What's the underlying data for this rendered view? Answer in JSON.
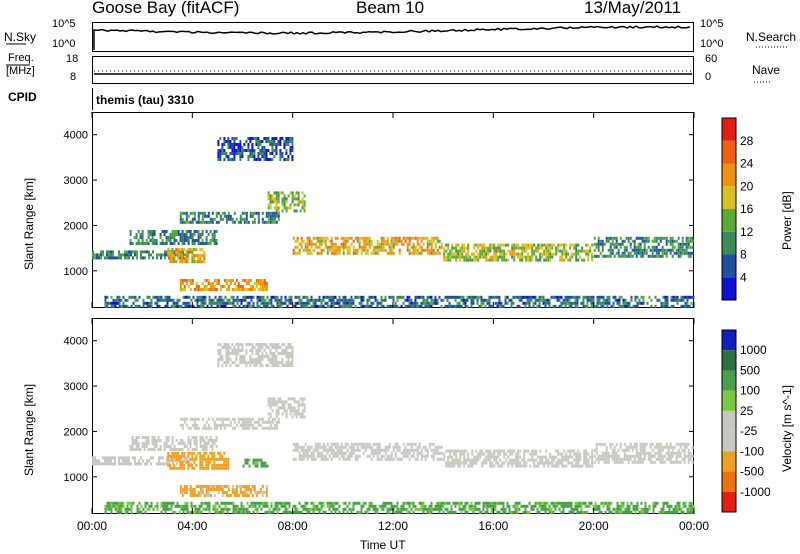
{
  "header": {
    "station": "Goose Bay (fitACF)",
    "beam": "Beam 10",
    "date": "13/May/2011"
  },
  "nsky_panel": {
    "left_label": "N.Sky",
    "left_ticks": [
      "10^5",
      "10^0"
    ],
    "right_label": "N.Search",
    "right_ticks": [
      "10^5",
      "10^0"
    ]
  },
  "freq_panel": {
    "left_label_line1": "Freq.",
    "left_label_line2": "[MHz]",
    "left_ticks": [
      "18",
      "8"
    ],
    "right_label": "Nave",
    "right_ticks": [
      "60",
      "0"
    ]
  },
  "cpid_panel": {
    "label": "CPID",
    "value": "themis (tau) 3310"
  },
  "x_axis": {
    "label": "Time UT",
    "ticks": [
      "00:00",
      "04:00",
      "08:00",
      "12:00",
      "16:00",
      "20:00",
      "00:00"
    ]
  },
  "colors": {
    "power_scale": [
      "#1010d0",
      "#2050a0",
      "#3a8a5a",
      "#5aaa3a",
      "#d8c020",
      "#f09010",
      "#f06010",
      "#e02010"
    ],
    "velocity_scale": [
      "#1020c0",
      "#2c7040",
      "#4aa04a",
      "#7ac840",
      "#c8c8c0",
      "#c8c8c0",
      "#f0a020",
      "#f07010",
      "#e02010"
    ],
    "ground_scatter": "#c8c8c0"
  },
  "chart_data": [
    {
      "type": "heatmap",
      "title": "",
      "xlabel": "Time UT",
      "ylabel": "Slant Range [km]",
      "xlim": [
        0,
        24
      ],
      "ylim": [
        180,
        4500
      ],
      "yticks": [
        1000,
        2000,
        3000,
        4000
      ],
      "colorbar": {
        "label": "Power [dB]",
        "ticks": [
          4,
          8,
          12,
          16,
          20,
          24,
          28
        ],
        "range": [
          0,
          32
        ]
      },
      "regions": [
        {
          "t": [
            0.0,
            4.0
          ],
          "r": [
            1250,
            1450
          ],
          "value": 10
        },
        {
          "t": [
            1.5,
            5.0
          ],
          "r": [
            1550,
            1900
          ],
          "value": 9
        },
        {
          "t": [
            3.5,
            7.5
          ],
          "r": [
            2050,
            2300
          ],
          "value": 9
        },
        {
          "t": [
            3.0,
            4.5
          ],
          "r": [
            1200,
            1500
          ],
          "value": 20
        },
        {
          "t": [
            3.5,
            7.0
          ],
          "r": [
            580,
            820
          ],
          "value": 22
        },
        {
          "t": [
            7.0,
            8.5
          ],
          "r": [
            2300,
            2750
          ],
          "value": 14
        },
        {
          "t": [
            8.0,
            14.0
          ],
          "r": [
            1350,
            1750
          ],
          "value": 20
        },
        {
          "t": [
            14.0,
            20.0
          ],
          "r": [
            1200,
            1600
          ],
          "value": 16
        },
        {
          "t": [
            20.0,
            24.0
          ],
          "r": [
            1300,
            1750
          ],
          "value": 10
        },
        {
          "t": [
            5.0,
            8.0
          ],
          "r": [
            3400,
            3950
          ],
          "value": 6
        },
        {
          "t": [
            0.5,
            24.0
          ],
          "r": [
            200,
            450
          ],
          "value": 8
        }
      ]
    },
    {
      "type": "heatmap",
      "title": "",
      "xlabel": "Time UT",
      "ylabel": "Slant Range [km]",
      "xlim": [
        0,
        24
      ],
      "ylim": [
        180,
        4500
      ],
      "yticks": [
        1000,
        2000,
        3000,
        4000
      ],
      "colorbar": {
        "label": "Velocity [m s^-1]",
        "ticks": [
          1000,
          500,
          100,
          25,
          -25,
          -100,
          -500,
          -1000
        ]
      },
      "regions": [
        {
          "t": [
            0.0,
            4.0
          ],
          "r": [
            1250,
            1450
          ],
          "value": 0
        },
        {
          "t": [
            1.5,
            5.0
          ],
          "r": [
            1550,
            1900
          ],
          "value": 0
        },
        {
          "t": [
            3.5,
            7.5
          ],
          "r": [
            2050,
            2300
          ],
          "value": 0
        },
        {
          "t": [
            3.0,
            5.5
          ],
          "r": [
            1150,
            1550
          ],
          "value": -300
        },
        {
          "t": [
            3.5,
            7.0
          ],
          "r": [
            580,
            820
          ],
          "value": -150
        },
        {
          "t": [
            6.0,
            7.0
          ],
          "r": [
            1200,
            1400
          ],
          "value": 150
        },
        {
          "t": [
            7.0,
            8.5
          ],
          "r": [
            2300,
            2750
          ],
          "value": 0
        },
        {
          "t": [
            8.0,
            14.0
          ],
          "r": [
            1350,
            1750
          ],
          "value": 0
        },
        {
          "t": [
            14.0,
            20.0
          ],
          "r": [
            1200,
            1600
          ],
          "value": 0
        },
        {
          "t": [
            20.0,
            24.0
          ],
          "r": [
            1300,
            1750
          ],
          "value": 0
        },
        {
          "t": [
            5.0,
            8.0
          ],
          "r": [
            3400,
            3950
          ],
          "value": 0
        },
        {
          "t": [
            0.5,
            24.0
          ],
          "r": [
            200,
            450
          ],
          "value": 150
        }
      ]
    }
  ]
}
